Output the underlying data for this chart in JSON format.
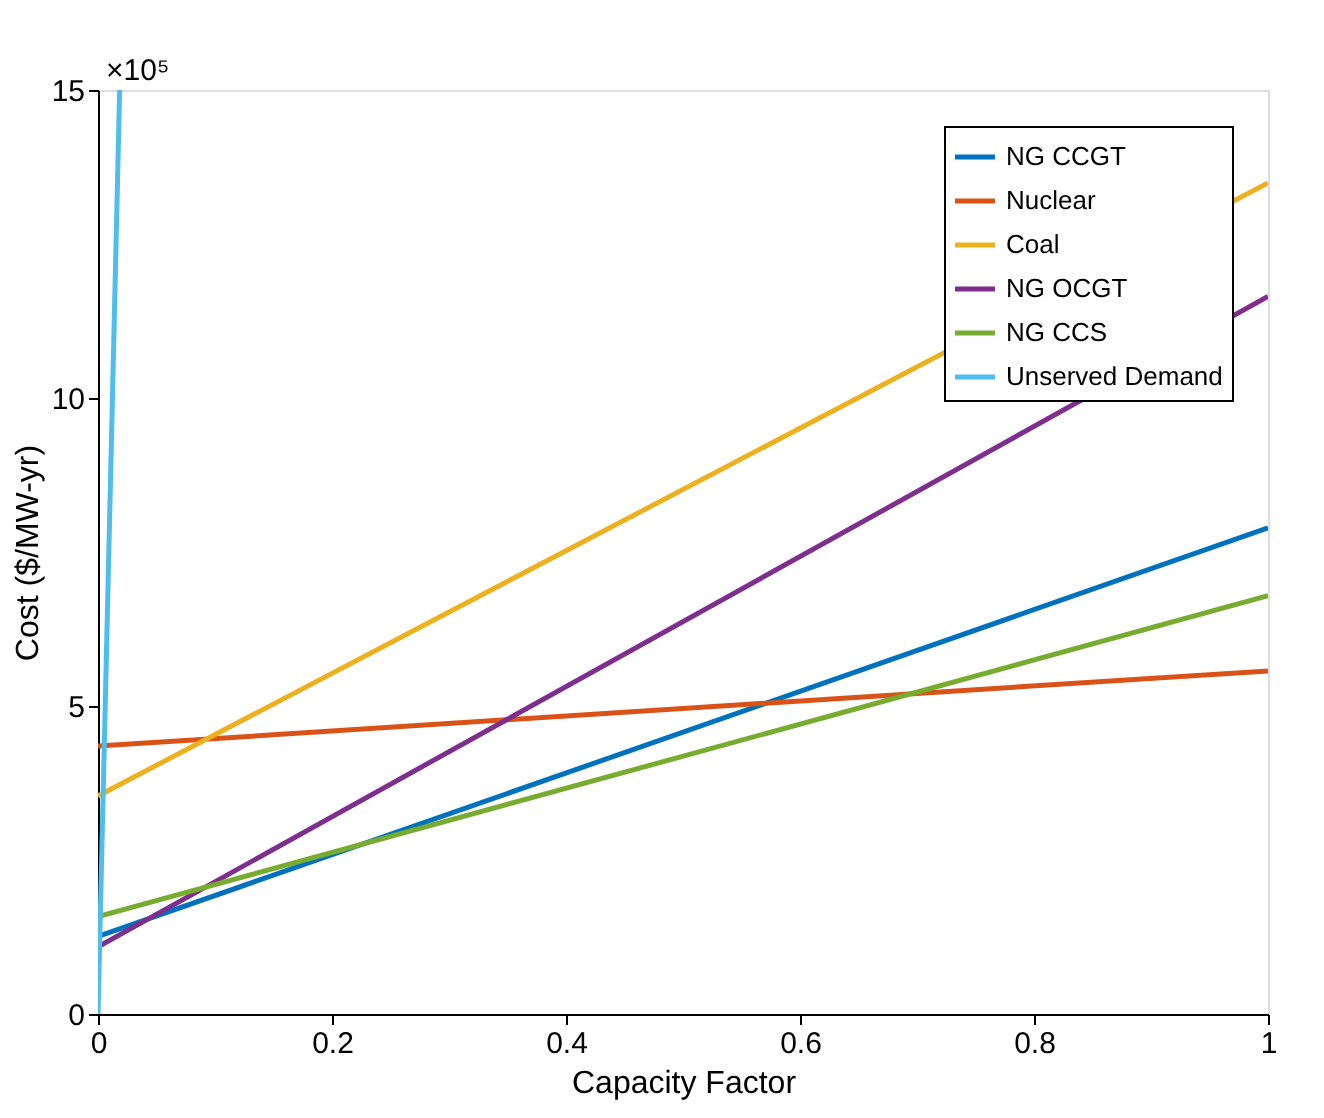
{
  "chart_data": {
    "type": "line",
    "xlabel": "Capacity Factor",
    "ylabel": "Cost ($/MW-yr)",
    "annotations": [
      "×10⁵"
    ],
    "series": [
      {
        "name": "NG CCGT",
        "color": "#0072bd",
        "x": [
          0,
          1
        ],
        "values": [
          1.26,
          7.89
        ]
      },
      {
        "name": "Nuclear",
        "color": "#d95319",
        "x": [
          0,
          1
        ],
        "values": [
          4.35,
          5.57
        ]
      },
      {
        "name": "Coal",
        "color": "#edb120",
        "x": [
          0,
          1
        ],
        "values": [
          3.54,
          13.49
        ]
      },
      {
        "name": "NG OCGT",
        "color": "#7e2f8e",
        "x": [
          0,
          1
        ],
        "values": [
          1.09,
          11.65
        ]
      },
      {
        "name": "NG CCS",
        "color": "#77ac30",
        "x": [
          0,
          1
        ],
        "values": [
          1.58,
          6.79
        ]
      },
      {
        "name": "Unserved Demand",
        "color": "#4dbeee",
        "x": [
          0,
          0.0185
        ],
        "values": [
          0,
          15
        ]
      }
    ],
    "xlim": [
      0,
      1
    ],
    "xticks": [
      0,
      0.2,
      0.4,
      0.6,
      0.8,
      1
    ],
    "ylim": [
      0,
      15
    ],
    "yticks": [
      0,
      5,
      10,
      15
    ],
    "grid": false,
    "legend": "top right",
    "marker": "none",
    "line_style": "solid"
  }
}
